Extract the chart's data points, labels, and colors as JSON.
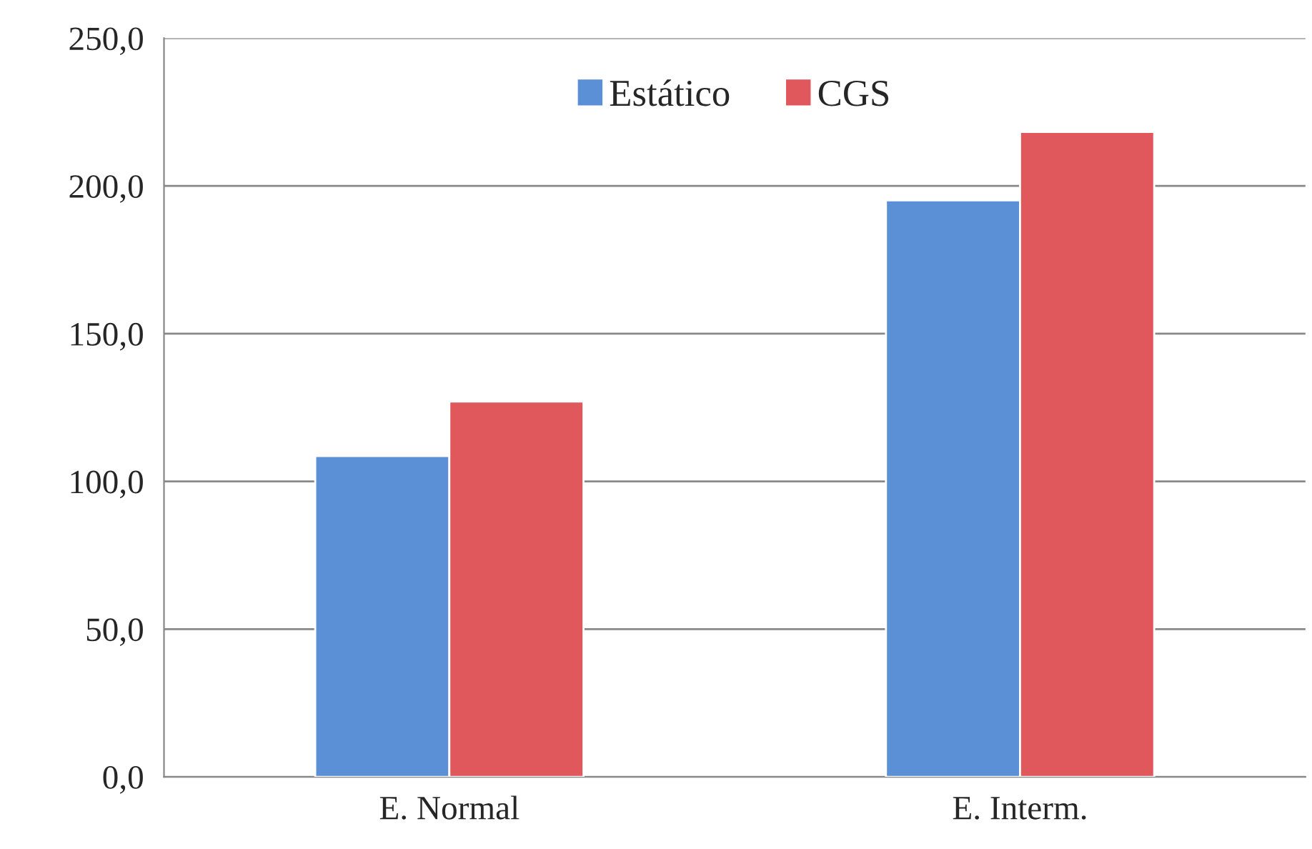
{
  "chart_data": {
    "type": "bar",
    "categories": [
      "E. Normal",
      "E. Interm."
    ],
    "series": [
      {
        "name": "Estático",
        "color": "#5b8fd6",
        "values": [
          108.6,
          195.1
        ]
      },
      {
        "name": "CGS",
        "color": "#e0575c",
        "values": [
          127.0,
          218.3
        ]
      }
    ],
    "ylim": [
      0,
      250
    ],
    "yticks": [
      {
        "value": 0,
        "label": "0,0"
      },
      {
        "value": 50,
        "label": "50,0"
      },
      {
        "value": 100,
        "label": "100,0"
      },
      {
        "value": 150,
        "label": "150,0"
      },
      {
        "value": 200,
        "label": "200,0"
      },
      {
        "value": 250,
        "label": "250,0"
      }
    ],
    "grid": "y",
    "legend": "top"
  }
}
